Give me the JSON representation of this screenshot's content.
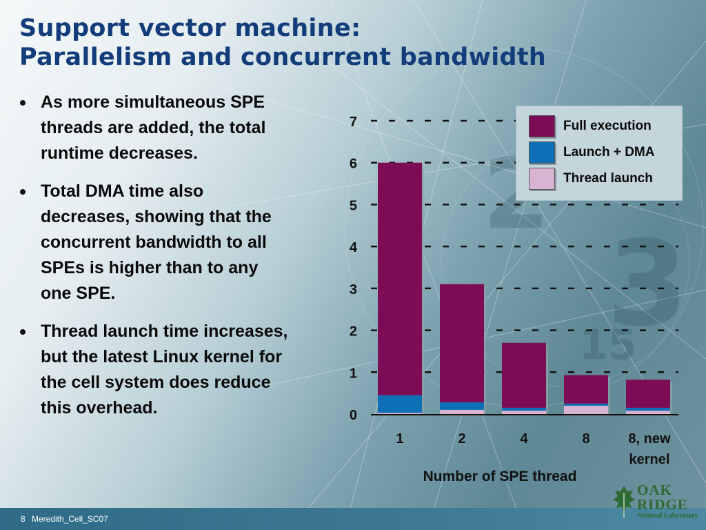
{
  "title": {
    "line1": "Support vector machine:",
    "line2": "Parallelism and concurrent bandwidth"
  },
  "bullets": [
    "As more simultaneous SPE threads are added, the total runtime decreases.",
    "Total DMA time also decreases, showing that the concurrent bandwidth to all SPEs is higher than to any one SPE.",
    "Thread launch time increases, but the latest Linux kernel for the cell system does reduce this overhead."
  ],
  "chart_data": {
    "type": "bar",
    "stacked": true,
    "categories": [
      "1",
      "2",
      "4",
      "8",
      "8, new kernel"
    ],
    "series": [
      {
        "name": "Thread launch",
        "color": "#d8b4d2",
        "values": [
          0.03,
          0.1,
          0.08,
          0.2,
          0.08
        ]
      },
      {
        "name": "Launch + DMA",
        "color": "#0e6fb6",
        "values": [
          0.42,
          0.18,
          0.07,
          0.05,
          0.07
        ]
      },
      {
        "name": "Full execution",
        "color": "#7c0c56",
        "values": [
          5.55,
          2.82,
          1.55,
          0.68,
          0.67
        ]
      }
    ],
    "xlabel": "Number of SPE thread",
    "ylabel": "",
    "ylim": [
      0,
      7
    ],
    "yticks": [
      0,
      1,
      2,
      3,
      4,
      5,
      6,
      7
    ],
    "grid": true,
    "legend_position": "top-right"
  },
  "legend": [
    {
      "label": "Full execution",
      "color": "#7c0c56"
    },
    {
      "label": "Launch + DMA",
      "color": "#0e6fb6"
    },
    {
      "label": "Thread launch",
      "color": "#d8b4d2"
    }
  ],
  "footer": {
    "page": "8",
    "text": "Meredith_Cell_SC07"
  },
  "logo": {
    "line1": "OAK",
    "line2": "RIDGE",
    "line3": "National Laboratory",
    "icon": "leaf-icon"
  }
}
